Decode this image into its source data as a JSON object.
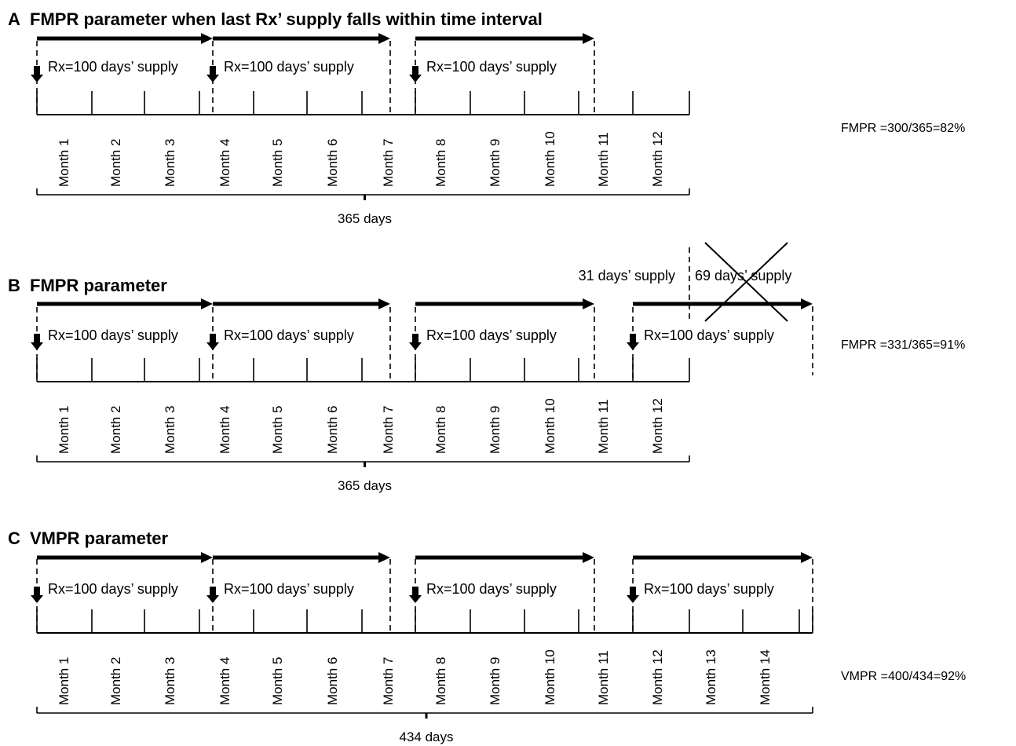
{
  "colors": {
    "ink": "#000000",
    "background": "#ffffff"
  },
  "panels": [
    {
      "id": "A",
      "letter": "A",
      "title": "FMPR parameter when last Rx’ supply falls within time interval",
      "months": [
        "Month 1",
        "Month 2",
        "Month 3",
        "Month 4",
        "Month 5",
        "Month 6",
        "Month 7",
        "Month 8",
        "Month 9",
        "Month 10",
        "Month 11",
        "Month 12"
      ],
      "supplies": [
        {
          "label": "Rx=100 days’ supply"
        },
        {
          "label": "Rx=100 days’ supply"
        },
        {
          "label": "Rx=100 days’ supply"
        }
      ],
      "span_label": "365 days",
      "result": "FMPR =300/365=82%"
    },
    {
      "id": "B",
      "letter": "B",
      "title": "FMPR parameter",
      "months": [
        "Month 1",
        "Month 2",
        "Month 3",
        "Month 4",
        "Month 5",
        "Month 6",
        "Month 7",
        "Month 8",
        "Month 9",
        "Month 10",
        "Month 11",
        "Month 12"
      ],
      "supplies": [
        {
          "label": "Rx=100 days’ supply"
        },
        {
          "label": "Rx=100 days’ supply"
        },
        {
          "label": "Rx=100 days’ supply"
        },
        {
          "label": "Rx=100 days’ supply"
        }
      ],
      "span_label": "365 days",
      "result": "FMPR =331/365=91%",
      "counted_part": "31 days’ supply",
      "excluded_part": "69 days’ supply"
    },
    {
      "id": "C",
      "letter": "C",
      "title": "VMPR parameter",
      "months": [
        "Month 1",
        "Month 2",
        "Month 3",
        "Month 4",
        "Month 5",
        "Month 6",
        "Month 7",
        "Month 8",
        "Month 9",
        "Month 10",
        "Month 11",
        "Month 12",
        "Month 13",
        "Month 14"
      ],
      "supplies": [
        {
          "label": "Rx=100 days’ supply"
        },
        {
          "label": "Rx=100 days’ supply"
        },
        {
          "label": "Rx=100 days’ supply"
        },
        {
          "label": "Rx=100 days’ supply"
        }
      ],
      "span_label": "434 days",
      "result": "VMPR =400/434=92%"
    }
  ]
}
